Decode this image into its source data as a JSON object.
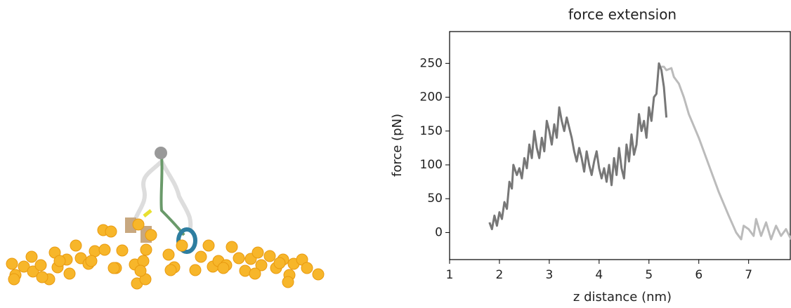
{
  "chart_data": {
    "type": "line",
    "title": "force extension",
    "x_label": "z distance (nm)",
    "y_label": "force (pN)",
    "xlim": [
      1,
      7.85
    ],
    "ylim": [
      -40,
      297
    ],
    "xticks": [
      1,
      2,
      3,
      4,
      5,
      6,
      7
    ],
    "yticks": [
      0,
      50,
      100,
      150,
      200,
      250
    ],
    "series": [
      {
        "color": "#777777",
        "x": [
          1.8,
          1.85,
          1.9,
          1.95,
          2.0,
          2.05,
          2.1,
          2.15,
          2.2,
          2.25,
          2.28,
          2.35,
          2.4,
          2.45,
          2.5,
          2.55,
          2.6,
          2.65,
          2.7,
          2.75,
          2.8,
          2.85,
          2.9,
          2.95,
          3.0,
          3.05,
          3.1,
          3.15,
          3.2,
          3.25,
          3.3,
          3.35,
          3.45,
          3.5,
          3.55,
          3.6,
          3.65,
          3.7,
          3.75,
          3.8,
          3.85,
          3.9,
          3.95,
          4.0,
          4.05,
          4.1,
          4.15,
          4.2,
          4.25,
          4.3,
          4.35,
          4.4,
          4.45,
          4.5,
          4.55,
          4.6,
          4.65,
          4.7,
          4.75,
          4.8,
          4.85,
          4.9,
          4.95,
          5.0,
          5.05,
          5.1,
          5.15,
          5.2,
          5.25,
          5.3,
          5.35
        ],
        "values": [
          15,
          5,
          25,
          10,
          30,
          20,
          45,
          35,
          75,
          65,
          100,
          85,
          95,
          80,
          110,
          95,
          130,
          110,
          150,
          125,
          110,
          140,
          120,
          165,
          150,
          130,
          160,
          140,
          185,
          165,
          150,
          170,
          140,
          120,
          105,
          125,
          110,
          90,
          120,
          100,
          85,
          105,
          120,
          95,
          80,
          95,
          75,
          100,
          70,
          110,
          85,
          125,
          95,
          80,
          130,
          105,
          145,
          115,
          130,
          175,
          150,
          165,
          140,
          185,
          165,
          200,
          205,
          250,
          240,
          215,
          170
        ]
      },
      {
        "color": "#bbbbbb",
        "x": [
          5.25,
          5.3,
          5.35,
          5.45,
          5.5,
          5.6,
          5.7,
          5.8,
          6.0,
          6.2,
          6.4,
          6.6,
          6.75,
          6.85,
          6.9,
          7.0,
          7.1,
          7.15,
          7.25,
          7.35,
          7.45,
          7.55,
          7.65,
          7.75,
          7.85
        ],
        "values": [
          245,
          245,
          240,
          243,
          230,
          220,
          200,
          175,
          140,
          100,
          60,
          25,
          0,
          -10,
          10,
          5,
          -5,
          20,
          -5,
          15,
          -10,
          10,
          -5,
          5,
          -10
        ]
      }
    ]
  }
}
